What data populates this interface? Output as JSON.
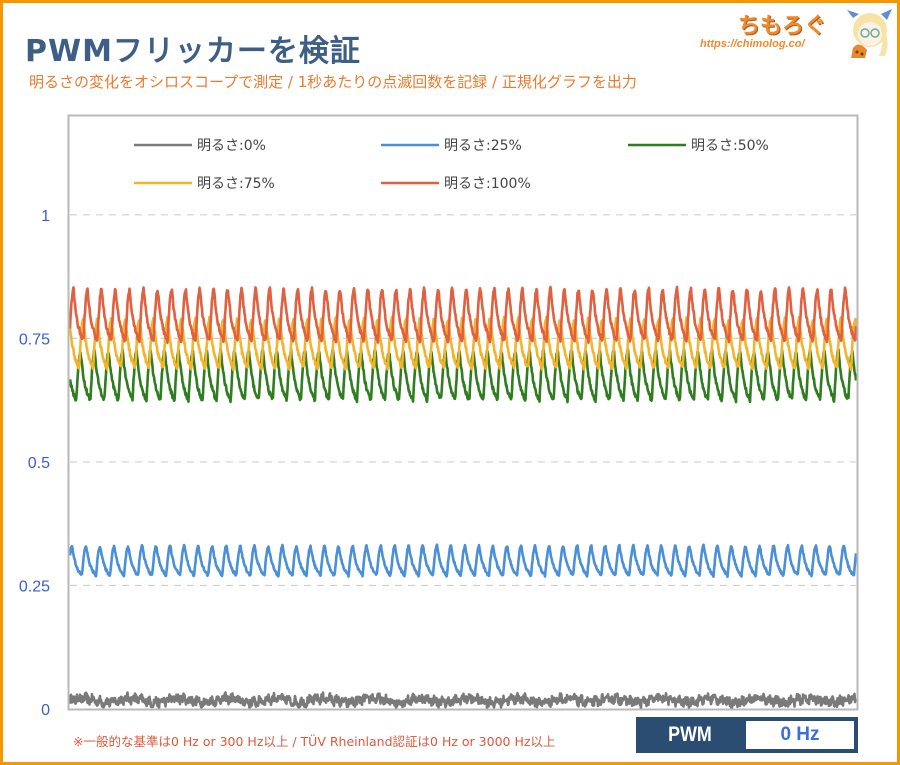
{
  "header": {
    "title": "PWMフリッカーを検証",
    "subtitle": "明るさの変化をオシロスコープで測定 / 1秒あたりの点滅回数を記録 / 正規化グラフを出力"
  },
  "logo": {
    "name": "ちもろぐ",
    "url": "https://chimolog.co/"
  },
  "footnote": "※一般的な基準は0 Hz or 300 Hz以上 / TÜV Rheinland認証は0 Hz or 3000 Hz以上",
  "badge": {
    "label": "PWM",
    "value": "0 Hz"
  },
  "colors": {
    "frame": "#f39800",
    "title": "#3d5f86",
    "subtitle": "#e87b2e",
    "badge_bg": "#2c4d72",
    "badge_value": "#3b6ed8"
  },
  "chart_data": {
    "type": "line",
    "title": "",
    "xlabel": "",
    "ylabel": "",
    "ylim": [
      0,
      1.2
    ],
    "yticks": [
      {
        "value": 0,
        "label": "0"
      },
      {
        "value": 0.25,
        "label": "0.25"
      },
      {
        "value": 0.5,
        "label": "0.5"
      },
      {
        "value": 0.75,
        "label": "0.75"
      },
      {
        "value": 1,
        "label": "1"
      }
    ],
    "grid": "horizontal-dashed",
    "legend_position": "top",
    "approx_cycles_in_window": 56,
    "series": [
      {
        "name": "明るさ:0%",
        "color": "#7a7a7a",
        "min": 0.005,
        "max": 0.03,
        "waveform": "noise"
      },
      {
        "name": "明るさ:25%",
        "color": "#4a90d9",
        "min": 0.27,
        "max": 0.33,
        "waveform": "ripple"
      },
      {
        "name": "明るさ:50%",
        "color": "#2e7d1e",
        "min": 0.625,
        "max": 0.725,
        "waveform": "ripple"
      },
      {
        "name": "明るさ:75%",
        "color": "#f5b32a",
        "min": 0.69,
        "max": 0.79,
        "waveform": "ripple"
      },
      {
        "name": "明るさ:100%",
        "color": "#e0603f",
        "min": 0.745,
        "max": 0.85,
        "waveform": "ripple"
      }
    ],
    "legend_order": [
      0,
      1,
      2,
      3,
      4
    ]
  }
}
